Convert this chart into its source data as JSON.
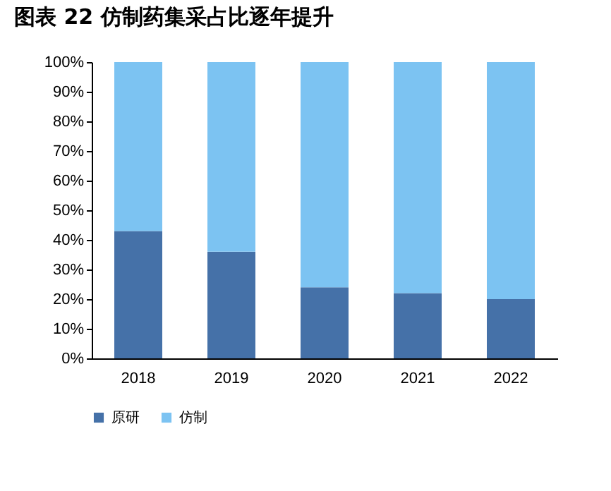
{
  "chart_data": {
    "type": "bar",
    "title": "图表 22 仿制药集采占比逐年提升",
    "categories": [
      "2018",
      "2019",
      "2020",
      "2021",
      "2022"
    ],
    "stacked": true,
    "series": [
      {
        "name": "原研",
        "color": "#4571a8",
        "values": [
          43,
          36,
          24,
          22,
          20
        ]
      },
      {
        "name": "仿制",
        "color": "#7cc3f2",
        "values": [
          57,
          64,
          76,
          78,
          80
        ]
      }
    ],
    "ylim": [
      0,
      100
    ],
    "yticks": [
      {
        "value": 0,
        "label": "0%"
      },
      {
        "value": 10,
        "label": "10%"
      },
      {
        "value": 20,
        "label": "20%"
      },
      {
        "value": 30,
        "label": "30%"
      },
      {
        "value": 40,
        "label": "40%"
      },
      {
        "value": 50,
        "label": "50%"
      },
      {
        "value": 60,
        "label": "60%"
      },
      {
        "value": 70,
        "label": "70%"
      },
      {
        "value": 80,
        "label": "80%"
      },
      {
        "value": 90,
        "label": "90%"
      },
      {
        "value": 100,
        "label": "100%"
      }
    ],
    "grid": false,
    "legend": "bottom"
  }
}
